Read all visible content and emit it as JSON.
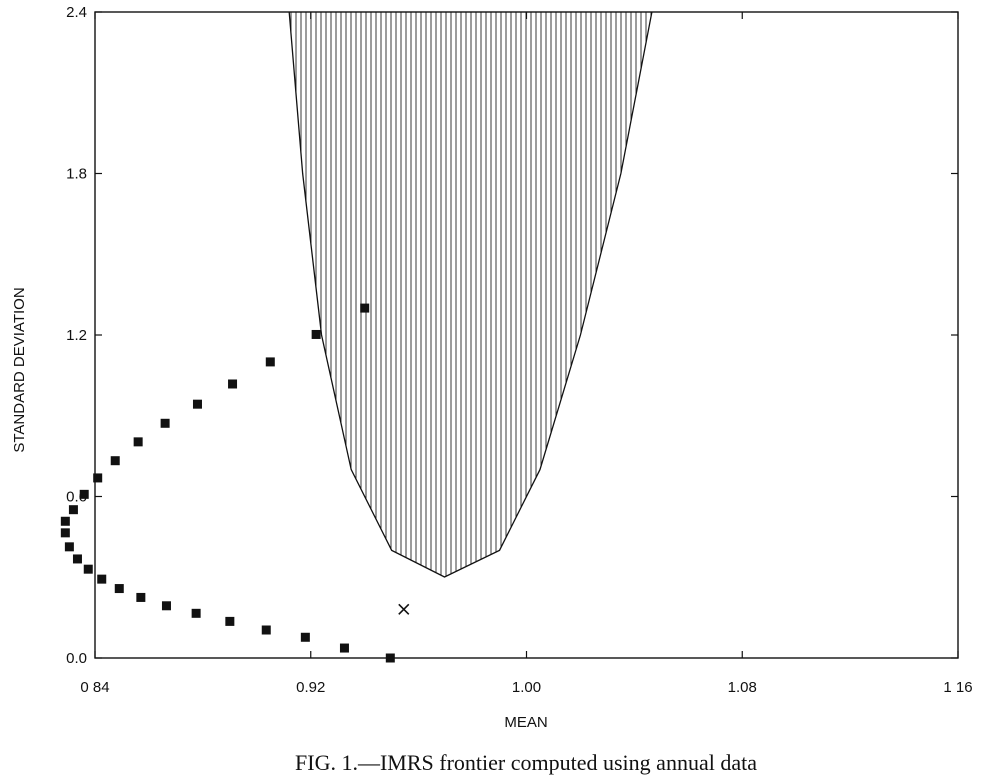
{
  "chart_data": {
    "type": "scatter",
    "xlabel": "MEAN",
    "ylabel": "STANDARD DEVIATION",
    "caption": "FIG. 1.—IMRS frontier computed using annual data",
    "xlim": [
      0.84,
      1.16
    ],
    "ylim": [
      0.0,
      2.4
    ],
    "x_ticks": [
      {
        "value": 0.84,
        "label": "0 84"
      },
      {
        "value": 0.92,
        "label": "0.92"
      },
      {
        "value": 1.0,
        "label": "1.00"
      },
      {
        "value": 1.08,
        "label": "1.08"
      },
      {
        "value": 1.16,
        "label": "1 16"
      }
    ],
    "y_ticks": [
      {
        "value": 0.0,
        "label": "0.0"
      },
      {
        "value": 0.6,
        "label": "0.6"
      },
      {
        "value": 1.2,
        "label": "1.2"
      },
      {
        "value": 1.8,
        "label": "1.8"
      },
      {
        "value": 2.4,
        "label": "2.4"
      }
    ],
    "grid": false,
    "frontier": {
      "shape": "parabola",
      "shaded_region": "above curve, vertical hatching",
      "vertex_mean": 0.9696,
      "vertex_sd": 0.301,
      "points": [
        [
          0.912,
          2.4
        ],
        [
          0.917,
          1.8
        ],
        [
          0.924,
          1.2
        ],
        [
          0.935,
          0.7
        ],
        [
          0.95,
          0.4
        ],
        [
          0.9696,
          0.301
        ],
        [
          0.99,
          0.4
        ],
        [
          1.005,
          0.7
        ],
        [
          1.02,
          1.2
        ],
        [
          1.035,
          1.8
        ],
        [
          1.0465,
          2.4
        ]
      ]
    },
    "series": [
      {
        "marker": "square",
        "points": [
          [
            0.9495,
            0.0
          ],
          [
            0.9325,
            0.037
          ],
          [
            0.918,
            0.077
          ],
          [
            0.9035,
            0.104
          ],
          [
            0.89,
            0.136
          ],
          [
            0.8775,
            0.166
          ],
          [
            0.8665,
            0.194
          ],
          [
            0.857,
            0.225
          ],
          [
            0.849,
            0.258
          ],
          [
            0.8425,
            0.293
          ],
          [
            0.8375,
            0.33
          ],
          [
            0.8335,
            0.368
          ],
          [
            0.8305,
            0.413
          ],
          [
            0.829,
            0.465
          ],
          [
            0.829,
            0.508
          ],
          [
            0.832,
            0.551
          ],
          [
            0.836,
            0.608
          ],
          [
            0.841,
            0.669
          ],
          [
            0.8475,
            0.733
          ],
          [
            0.856,
            0.803
          ],
          [
            0.866,
            0.872
          ],
          [
            0.878,
            0.943
          ],
          [
            0.891,
            1.018
          ],
          [
            0.905,
            1.1
          ],
          [
            0.922,
            1.202
          ],
          [
            0.94,
            1.3
          ]
        ]
      },
      {
        "marker": "x",
        "points": [
          [
            0.9545,
            0.181
          ]
        ]
      }
    ]
  }
}
